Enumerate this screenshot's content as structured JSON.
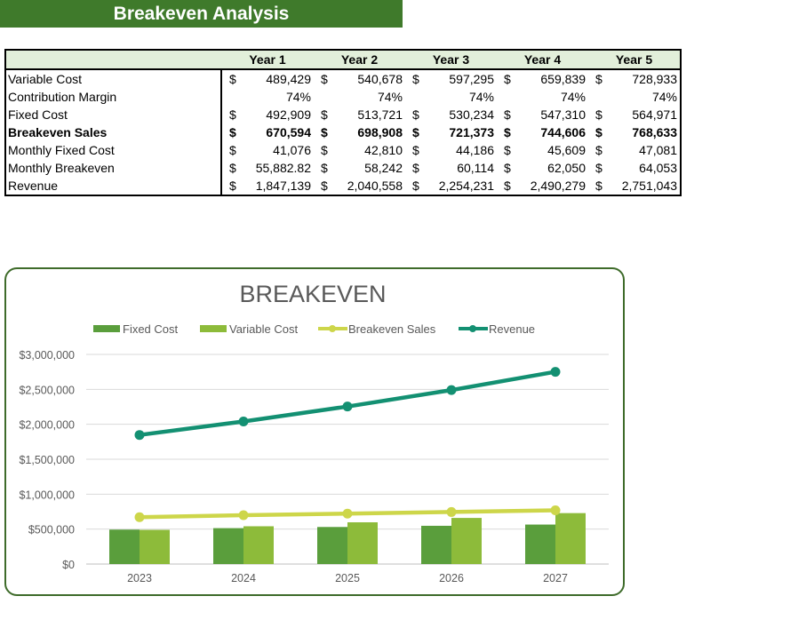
{
  "title": "Breakeven Analysis",
  "table": {
    "headers": [
      "Year 1",
      "Year 2",
      "Year 3",
      "Year 4",
      "Year 5"
    ],
    "rows": [
      {
        "label": "Variable Cost",
        "type": "cur",
        "bold": false,
        "values": [
          "489,429",
          "540,678",
          "597,295",
          "659,839",
          "728,933"
        ]
      },
      {
        "label": "Contribution Margin",
        "type": "pct",
        "bold": false,
        "values": [
          "74%",
          "74%",
          "74%",
          "74%",
          "74%"
        ]
      },
      {
        "label": "Fixed Cost",
        "type": "cur",
        "bold": false,
        "values": [
          "492,909",
          "513,721",
          "530,234",
          "547,310",
          "564,971"
        ]
      },
      {
        "label": "Breakeven Sales",
        "type": "cur",
        "bold": true,
        "values": [
          "670,594",
          "698,908",
          "721,373",
          "744,606",
          "768,633"
        ]
      },
      {
        "label": "Monthly Fixed Cost",
        "type": "cur",
        "bold": false,
        "values": [
          "41,076",
          "42,810",
          "44,186",
          "45,609",
          "47,081"
        ]
      },
      {
        "label": "Monthly Breakeven",
        "type": "cur",
        "bold": false,
        "values": [
          "55,882.82",
          "58,242",
          "60,114",
          "62,050",
          "64,053"
        ]
      },
      {
        "label": "Revenue",
        "type": "cur",
        "bold": false,
        "values": [
          "1,847,139",
          "2,040,558",
          "2,254,231",
          "2,490,279",
          "2,751,043"
        ]
      }
    ],
    "currency_symbol": "$"
  },
  "chart_data": {
    "type": "bar",
    "title": "BREAKEVEN",
    "categories": [
      "2023",
      "2024",
      "2025",
      "2026",
      "2027"
    ],
    "ylim": [
      0,
      3000000
    ],
    "yticks": [
      0,
      500000,
      1000000,
      1500000,
      2000000,
      2500000,
      3000000
    ],
    "ytick_labels": [
      "$0",
      "$500,000",
      "$1,000,000",
      "$1,500,000",
      "$2,000,000",
      "$2,500,000",
      "$3,000,000"
    ],
    "grid": true,
    "legend": "top",
    "series": [
      {
        "name": "Fixed Cost",
        "kind": "bar",
        "color": "#5a9e3c",
        "values": [
          492909,
          513721,
          530234,
          547310,
          564971
        ]
      },
      {
        "name": "Variable Cost",
        "kind": "bar",
        "color": "#8dbb3a",
        "values": [
          489429,
          540678,
          597295,
          659839,
          728933
        ]
      },
      {
        "name": "Breakeven Sales",
        "kind": "line",
        "color": "#cdd64a",
        "values": [
          670594,
          698908,
          721373,
          744606,
          768633
        ]
      },
      {
        "name": "Revenue",
        "kind": "line",
        "color": "#139072",
        "values": [
          1847139,
          2040558,
          2254231,
          2490279,
          2751043
        ]
      }
    ]
  }
}
